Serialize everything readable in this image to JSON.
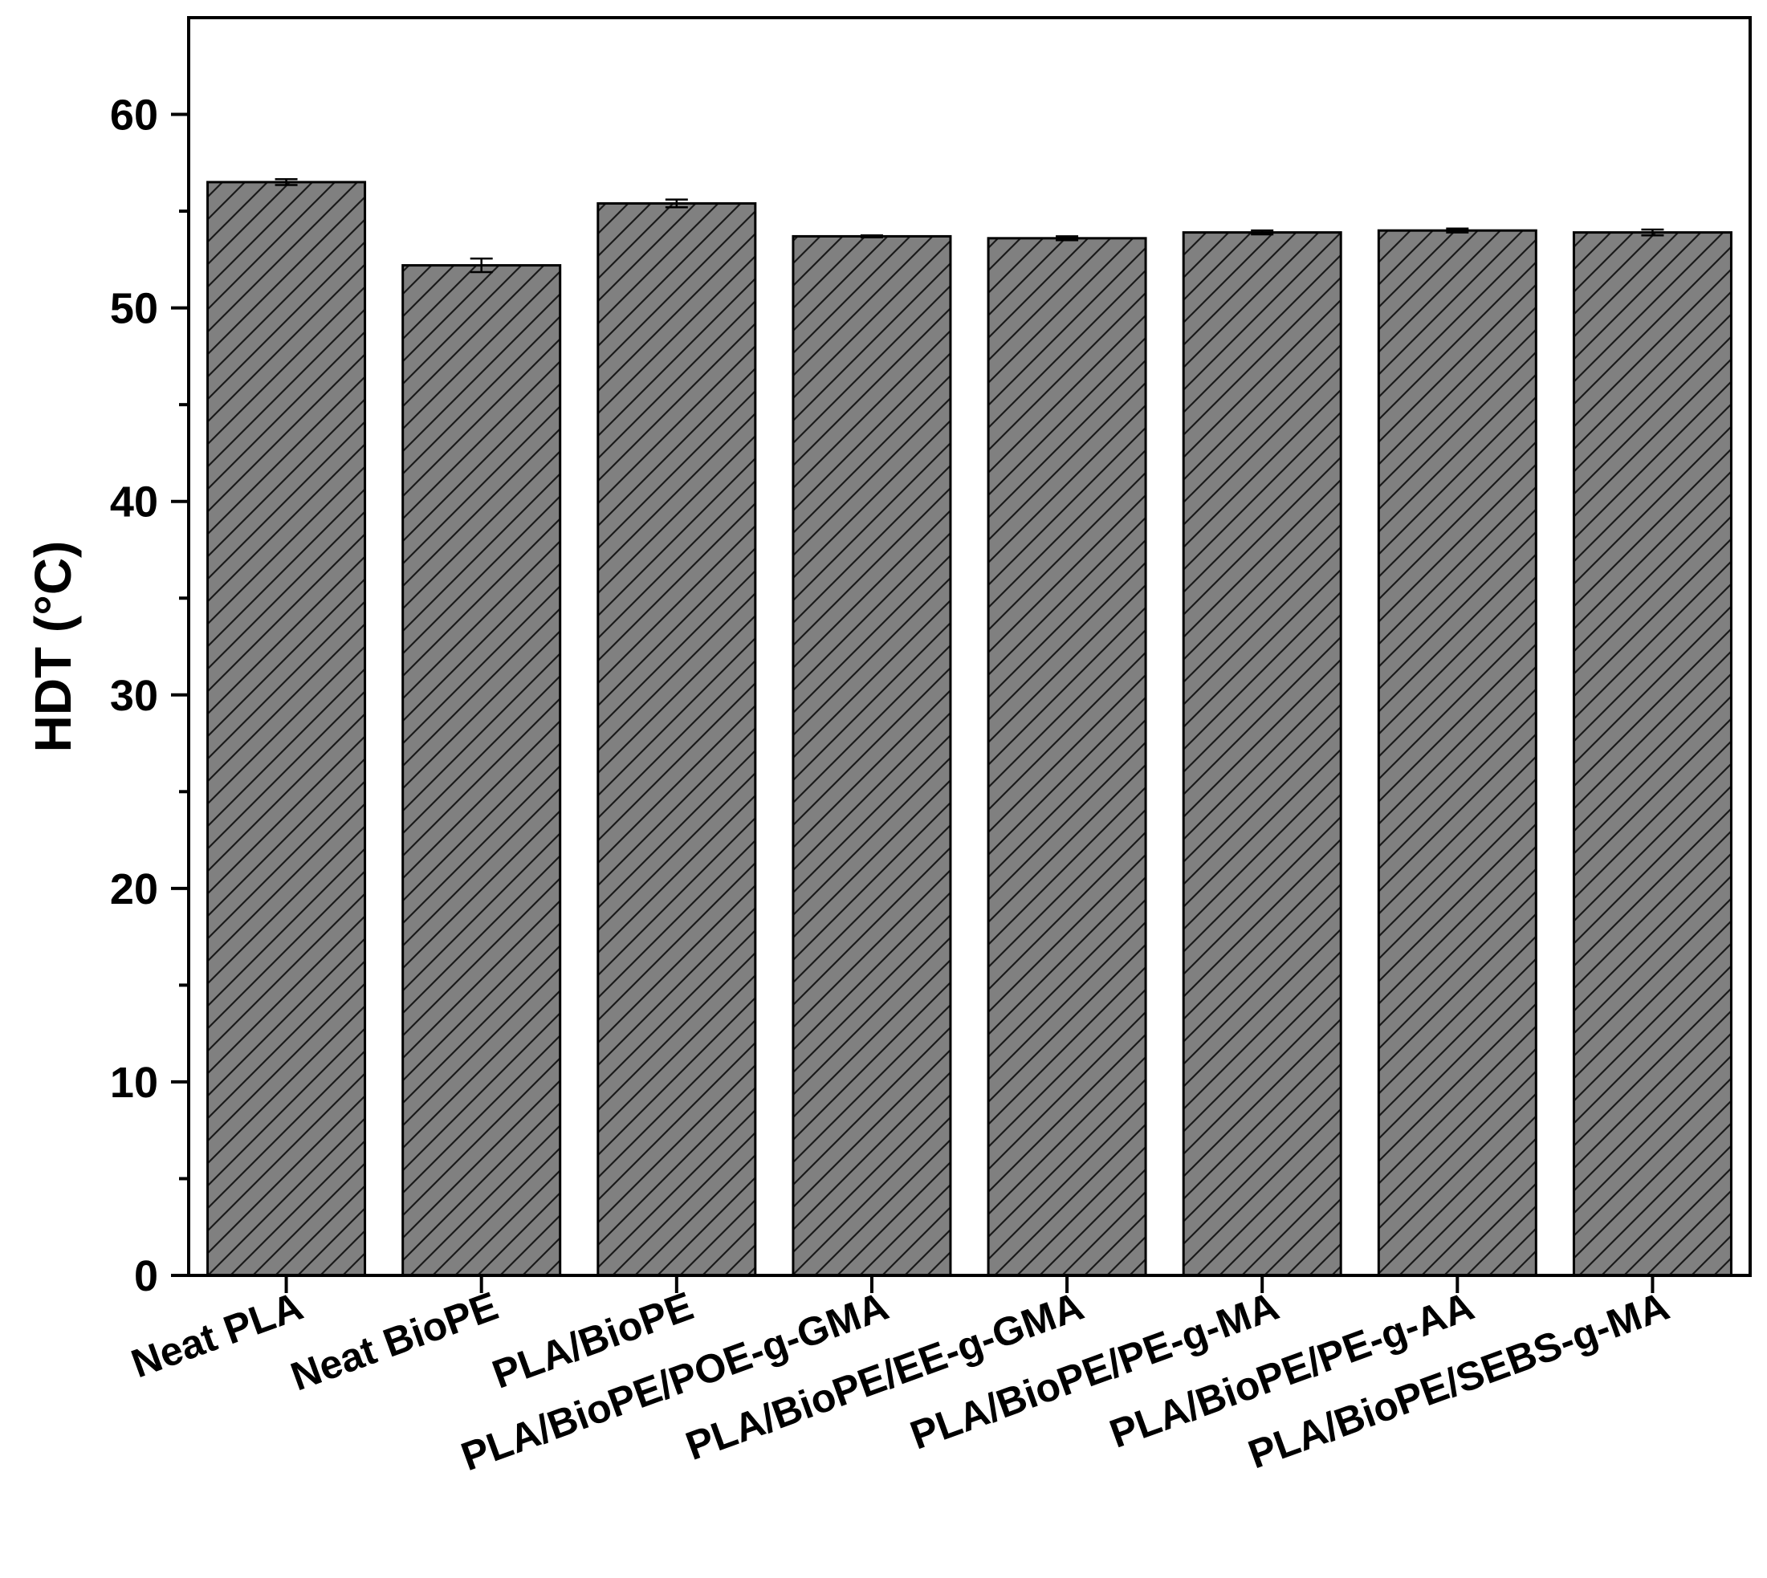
{
  "chart_data": {
    "type": "bar",
    "title": "",
    "xlabel": "",
    "ylabel": "HDT (°C)",
    "ylim": [
      0,
      65
    ],
    "yticks": [
      0,
      10,
      20,
      30,
      40,
      50,
      60
    ],
    "grid": false,
    "legend": "none",
    "bar_color": "#808080",
    "bar_pattern": "diagonal-hatch",
    "categories": [
      "Neat PLA",
      "Neat BioPE",
      "PLA/BioPE",
      "PLA/BioPE/POE-g-GMA",
      "PLA/BioPE/EE-g-GMA",
      "PLA/BioPE/PE-g-MA",
      "PLA/BioPE/PE-g-AA",
      "PLA/BioPE/SEBS-g-MA"
    ],
    "values": [
      56.5,
      52.2,
      55.4,
      53.7,
      53.6,
      53.9,
      54.0,
      53.9
    ],
    "errors": [
      0.15,
      0.35,
      0.2,
      0.05,
      0.1,
      0.1,
      0.1,
      0.15
    ]
  }
}
